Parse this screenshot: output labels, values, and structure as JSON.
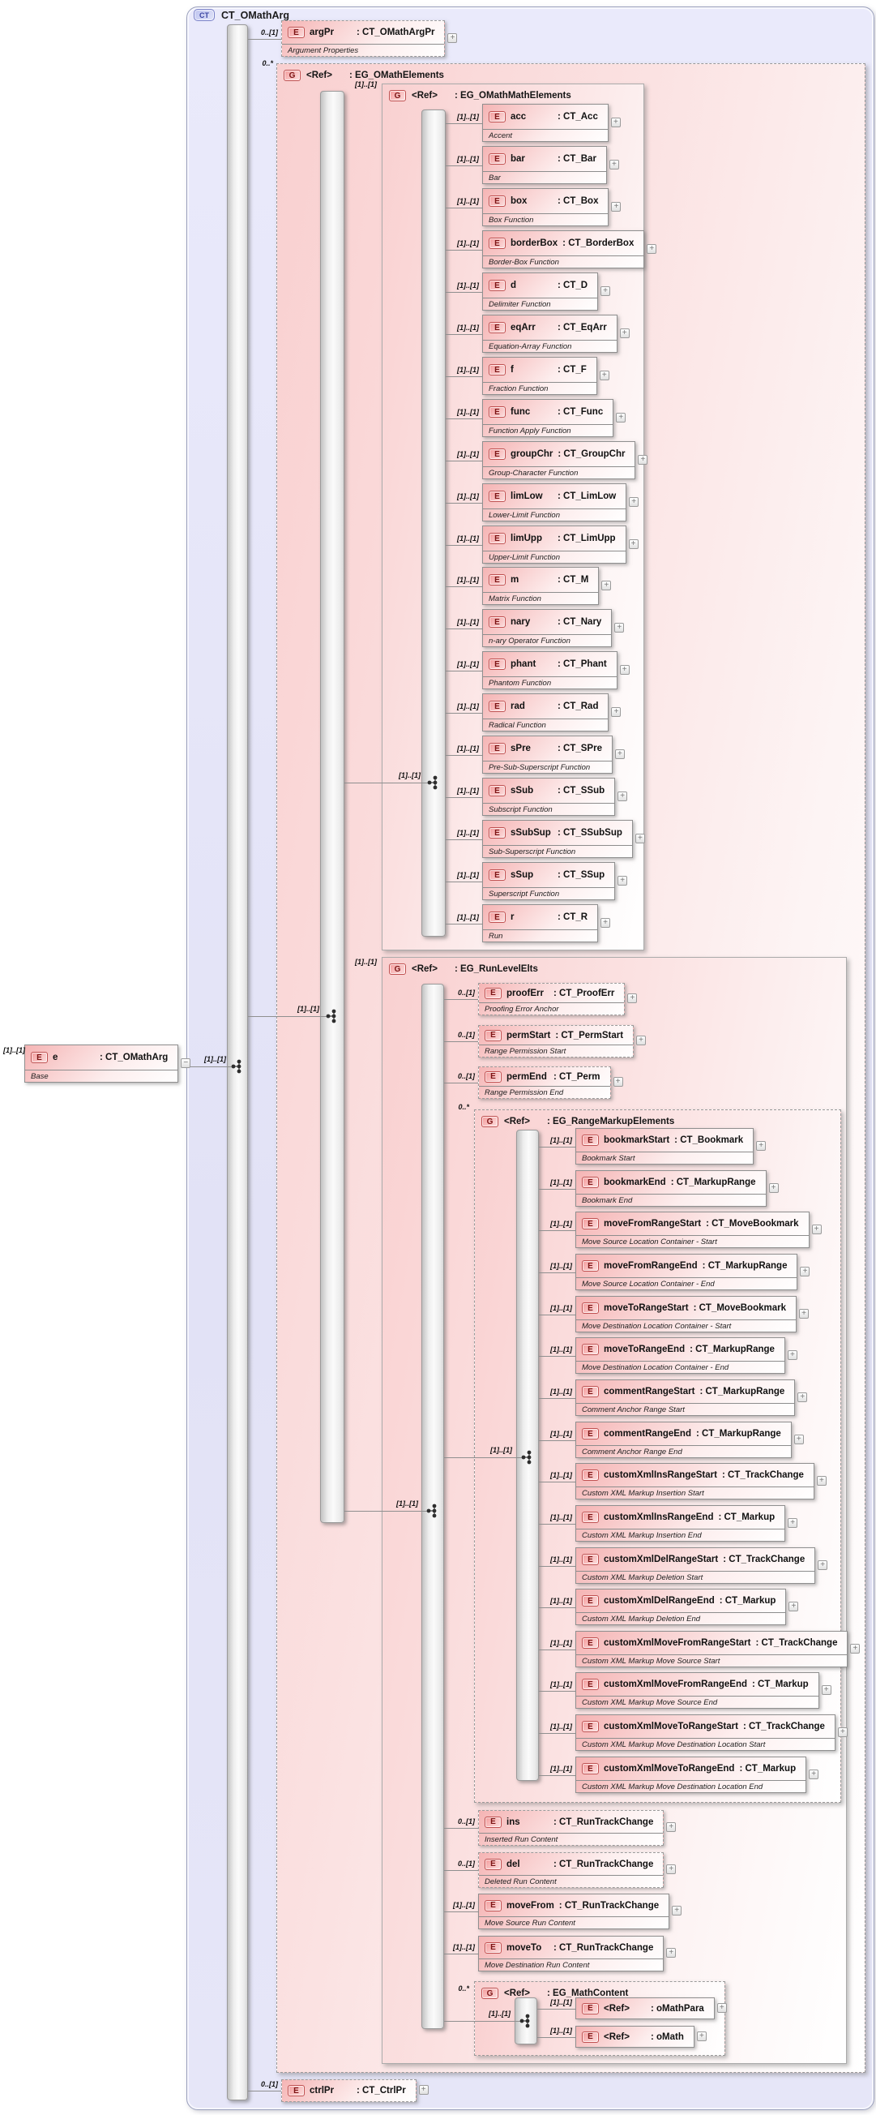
{
  "colors": {
    "element_pink": "#f5b4b4",
    "group_pink": "#f9d0d0",
    "frame_blue": "#e2e2f6",
    "badge_red_border": "#c05050",
    "badge_blue_border": "#7880c8",
    "connector": "#8f8f8f"
  },
  "ui": {
    "expand_symbol": "+",
    "collapse_symbol": "−"
  },
  "root": {
    "badge": "CT",
    "title": "CT_OMathArg"
  },
  "source": {
    "badge": "E",
    "name": "e",
    "type": "CT_OMathArg",
    "annotation": "Base",
    "card": "[1]..[1]",
    "seq_card": "[1]..[1]"
  },
  "argPr": {
    "badge": "E",
    "name": "argPr",
    "type": "CT_OMathArgPr",
    "annotation": "Argument Properties",
    "card": "0..[1]"
  },
  "ctrlPr": {
    "badge": "E",
    "name": "ctrlPr",
    "type": "CT_CtrlPr",
    "card": "0..[1]"
  },
  "omath_group": {
    "badge": "G",
    "name": "<Ref>",
    "type": "EG_OMathElements",
    "card": "0..*",
    "compositor_card": "[1]..[1]",
    "math_group": {
      "badge": "G",
      "name": "<Ref>",
      "type": "EG_OMathMathElements",
      "card": "[1]..[1]",
      "compositor_card": "[1]..[1]",
      "elements": [
        {
          "badge": "E",
          "name": "acc",
          "type": "CT_Acc",
          "annotation": "Accent",
          "card": "[1]..[1]"
        },
        {
          "badge": "E",
          "name": "bar",
          "type": "CT_Bar",
          "annotation": "Bar",
          "card": "[1]..[1]"
        },
        {
          "badge": "E",
          "name": "box",
          "type": "CT_Box",
          "annotation": "Box Function",
          "card": "[1]..[1]"
        },
        {
          "badge": "E",
          "name": "borderBox",
          "type": "CT_BorderBox",
          "annotation": "Border-Box Function",
          "card": "[1]..[1]"
        },
        {
          "badge": "E",
          "name": "d",
          "type": "CT_D",
          "annotation": "Delimiter Function",
          "card": "[1]..[1]"
        },
        {
          "badge": "E",
          "name": "eqArr",
          "type": "CT_EqArr",
          "annotation": "Equation-Array Function",
          "card": "[1]..[1]"
        },
        {
          "badge": "E",
          "name": "f",
          "type": "CT_F",
          "annotation": "Fraction Function",
          "card": "[1]..[1]"
        },
        {
          "badge": "E",
          "name": "func",
          "type": "CT_Func",
          "annotation": "Function Apply Function",
          "card": "[1]..[1]"
        },
        {
          "badge": "E",
          "name": "groupChr",
          "type": "CT_GroupChr",
          "annotation": "Group-Character Function",
          "card": "[1]..[1]"
        },
        {
          "badge": "E",
          "name": "limLow",
          "type": "CT_LimLow",
          "annotation": "Lower-Limit Function",
          "card": "[1]..[1]"
        },
        {
          "badge": "E",
          "name": "limUpp",
          "type": "CT_LimUpp",
          "annotation": "Upper-Limit Function",
          "card": "[1]..[1]"
        },
        {
          "badge": "E",
          "name": "m",
          "type": "CT_M",
          "annotation": "Matrix Function",
          "card": "[1]..[1]"
        },
        {
          "badge": "E",
          "name": "nary",
          "type": "CT_Nary",
          "annotation": "n-ary Operator Function",
          "card": "[1]..[1]"
        },
        {
          "badge": "E",
          "name": "phant",
          "type": "CT_Phant",
          "annotation": "Phantom Function",
          "card": "[1]..[1]"
        },
        {
          "badge": "E",
          "name": "rad",
          "type": "CT_Rad",
          "annotation": "Radical Function",
          "card": "[1]..[1]"
        },
        {
          "badge": "E",
          "name": "sPre",
          "type": "CT_SPre",
          "annotation": "Pre-Sub-Superscript Function",
          "card": "[1]..[1]"
        },
        {
          "badge": "E",
          "name": "sSub",
          "type": "CT_SSub",
          "annotation": "Subscript Function",
          "card": "[1]..[1]"
        },
        {
          "badge": "E",
          "name": "sSubSup",
          "type": "CT_SSubSup",
          "annotation": "Sub-Superscript Function",
          "card": "[1]..[1]"
        },
        {
          "badge": "E",
          "name": "sSup",
          "type": "CT_SSup",
          "annotation": "Superscript Function",
          "card": "[1]..[1]"
        },
        {
          "badge": "E",
          "name": "r",
          "type": "CT_R",
          "annotation": "Run",
          "card": "[1]..[1]"
        }
      ]
    },
    "runlevel_group": {
      "badge": "G",
      "name": "<Ref>",
      "type": "EG_RunLevelElts",
      "card": "[1]..[1]",
      "compositor_card": "[1]..[1]",
      "pre_elements": [
        {
          "badge": "E",
          "name": "proofErr",
          "type": "CT_ProofErr",
          "annotation": "Proofing Error Anchor",
          "card": "0..[1]"
        },
        {
          "badge": "E",
          "name": "permStart",
          "type": "CT_PermStart",
          "annotation": "Range Permission Start",
          "card": "0..[1]"
        },
        {
          "badge": "E",
          "name": "permEnd",
          "type": "CT_Perm",
          "annotation": "Range Permission End",
          "card": "0..[1]"
        }
      ],
      "range_group": {
        "badge": "G",
        "name": "<Ref>",
        "type": "EG_RangeMarkupElements",
        "card": "0..*",
        "compositor_card": "[1]..[1]",
        "elements": [
          {
            "badge": "E",
            "name": "bookmarkStart",
            "type": "CT_Bookmark",
            "annotation": "Bookmark Start",
            "card": "[1]..[1]"
          },
          {
            "badge": "E",
            "name": "bookmarkEnd",
            "type": "CT_MarkupRange",
            "annotation": "Bookmark End",
            "card": "[1]..[1]"
          },
          {
            "badge": "E",
            "name": "moveFromRangeStart",
            "type": "CT_MoveBookmark",
            "annotation": "Move Source Location Container - Start",
            "card": "[1]..[1]"
          },
          {
            "badge": "E",
            "name": "moveFromRangeEnd",
            "type": "CT_MarkupRange",
            "annotation": "Move Source Location Container - End",
            "card": "[1]..[1]"
          },
          {
            "badge": "E",
            "name": "moveToRangeStart",
            "type": "CT_MoveBookmark",
            "annotation": "Move Destination Location Container - Start",
            "card": "[1]..[1]"
          },
          {
            "badge": "E",
            "name": "moveToRangeEnd",
            "type": "CT_MarkupRange",
            "annotation": "Move Destination Location Container - End",
            "card": "[1]..[1]"
          },
          {
            "badge": "E",
            "name": "commentRangeStart",
            "type": "CT_MarkupRange",
            "annotation": "Comment Anchor Range Start",
            "card": "[1]..[1]"
          },
          {
            "badge": "E",
            "name": "commentRangeEnd",
            "type": "CT_MarkupRange",
            "annotation": "Comment Anchor Range End",
            "card": "[1]..[1]"
          },
          {
            "badge": "E",
            "name": "customXmlInsRangeStart",
            "type": "CT_TrackChange",
            "annotation": "Custom XML Markup Insertion Start",
            "card": "[1]..[1]"
          },
          {
            "badge": "E",
            "name": "customXmlInsRangeEnd",
            "type": "CT_Markup",
            "annotation": "Custom XML Markup Insertion End",
            "card": "[1]..[1]"
          },
          {
            "badge": "E",
            "name": "customXmlDelRangeStart",
            "type": "CT_TrackChange",
            "annotation": "Custom XML Markup Deletion Start",
            "card": "[1]..[1]"
          },
          {
            "badge": "E",
            "name": "customXmlDelRangeEnd",
            "type": "CT_Markup",
            "annotation": "Custom XML Markup Deletion End",
            "card": "[1]..[1]"
          },
          {
            "badge": "E",
            "name": "customXmlMoveFromRangeStart",
            "type": "CT_TrackChange",
            "annotation": "Custom XML Markup Move Source Start",
            "card": "[1]..[1]"
          },
          {
            "badge": "E",
            "name": "customXmlMoveFromRangeEnd",
            "type": "CT_Markup",
            "annotation": "Custom XML Markup Move Source End",
            "card": "[1]..[1]"
          },
          {
            "badge": "E",
            "name": "customXmlMoveToRangeStart",
            "type": "CT_TrackChange",
            "annotation": "Custom XML Markup Move Destination Location Start",
            "card": "[1]..[1]"
          },
          {
            "badge": "E",
            "name": "customXmlMoveToRangeEnd",
            "type": "CT_Markup",
            "annotation": "Custom XML Markup Move Destination Location End",
            "card": "[1]..[1]"
          }
        ]
      },
      "post_elements": [
        {
          "badge": "E",
          "name": "ins",
          "type": "CT_RunTrackChange",
          "annotation": "Inserted Run Content",
          "card": "0..[1]"
        },
        {
          "badge": "E",
          "name": "del",
          "type": "CT_RunTrackChange",
          "annotation": "Deleted Run Content",
          "card": "0..[1]"
        },
        {
          "badge": "E",
          "name": "moveFrom",
          "type": "CT_RunTrackChange",
          "annotation": "Move Source Run Content",
          "card": "[1]..[1]"
        },
        {
          "badge": "E",
          "name": "moveTo",
          "type": "CT_RunTrackChange",
          "annotation": "Move Destination Run Content",
          "card": "[1]..[1]"
        }
      ],
      "mathcontent_group": {
        "badge": "G",
        "name": "<Ref>",
        "type": "EG_MathContent",
        "card": "0..*",
        "compositor_card": "[1]..[1]",
        "elements": [
          {
            "badge": "E",
            "name": "<Ref>",
            "type": "oMathPara",
            "card": "[1]..[1]"
          },
          {
            "badge": "E",
            "name": "<Ref>",
            "type": "oMath",
            "card": "[1]..[1]"
          }
        ]
      }
    }
  }
}
